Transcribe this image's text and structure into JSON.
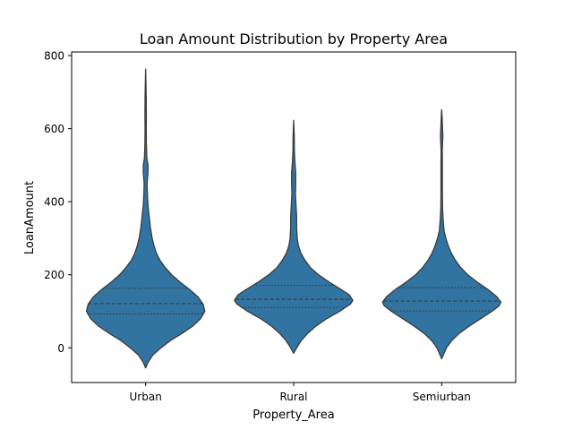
{
  "chart_data": {
    "type": "violin",
    "title": "Loan Amount Distribution by Property Area",
    "xlabel": "Property_Area",
    "ylabel": "LoanAmount",
    "ylim": [
      -95,
      810
    ],
    "yticks": [
      0,
      200,
      400,
      600,
      800
    ],
    "categories": [
      "Urban",
      "Rural",
      "Semiurban"
    ],
    "violin_color": "#3274a1",
    "edge_color": "#3b3b3b",
    "inner": "quartile",
    "series": [
      {
        "category": "Urban",
        "quartiles": [
          93,
          121,
          163
        ],
        "profile": [
          [
            -55,
            0
          ],
          [
            -40,
            0.04
          ],
          [
            -20,
            0.12
          ],
          [
            0,
            0.26
          ],
          [
            20,
            0.42
          ],
          [
            40,
            0.62
          ],
          [
            60,
            0.8
          ],
          [
            80,
            0.93
          ],
          [
            100,
            1.0
          ],
          [
            120,
            0.97
          ],
          [
            140,
            0.88
          ],
          [
            160,
            0.74
          ],
          [
            180,
            0.58
          ],
          [
            200,
            0.44
          ],
          [
            220,
            0.33
          ],
          [
            240,
            0.24
          ],
          [
            260,
            0.18
          ],
          [
            280,
            0.14
          ],
          [
            300,
            0.11
          ],
          [
            330,
            0.08
          ],
          [
            360,
            0.06
          ],
          [
            390,
            0.04
          ],
          [
            420,
            0.03
          ],
          [
            450,
            0.025
          ],
          [
            480,
            0.04
          ],
          [
            500,
            0.04
          ],
          [
            520,
            0.02
          ],
          [
            560,
            0.012
          ],
          [
            600,
            0.01
          ],
          [
            640,
            0.012
          ],
          [
            680,
            0.01
          ],
          [
            720,
            0.006
          ],
          [
            763,
            0
          ]
        ]
      },
      {
        "category": "Rural",
        "quartiles": [
          110,
          133,
          171
        ],
        "profile": [
          [
            -15,
            0
          ],
          [
            0,
            0.05
          ],
          [
            20,
            0.13
          ],
          [
            40,
            0.24
          ],
          [
            60,
            0.38
          ],
          [
            80,
            0.56
          ],
          [
            100,
            0.78
          ],
          [
            120,
            0.96
          ],
          [
            130,
            1.0
          ],
          [
            145,
            0.94
          ],
          [
            160,
            0.8
          ],
          [
            180,
            0.6
          ],
          [
            200,
            0.42
          ],
          [
            220,
            0.28
          ],
          [
            240,
            0.19
          ],
          [
            260,
            0.12
          ],
          [
            280,
            0.08
          ],
          [
            300,
            0.06
          ],
          [
            330,
            0.05
          ],
          [
            360,
            0.05
          ],
          [
            390,
            0.04
          ],
          [
            420,
            0.03
          ],
          [
            450,
            0.035
          ],
          [
            480,
            0.035
          ],
          [
            510,
            0.02
          ],
          [
            540,
            0.012
          ],
          [
            580,
            0.01
          ],
          [
            623,
            0
          ]
        ]
      },
      {
        "category": "Semiurban",
        "quartiles": [
          101,
          128,
          165
        ],
        "profile": [
          [
            -30,
            0
          ],
          [
            -15,
            0.04
          ],
          [
            0,
            0.08
          ],
          [
            20,
            0.17
          ],
          [
            40,
            0.3
          ],
          [
            60,
            0.47
          ],
          [
            80,
            0.66
          ],
          [
            100,
            0.85
          ],
          [
            115,
            0.97
          ],
          [
            125,
            1.0
          ],
          [
            140,
            0.93
          ],
          [
            160,
            0.78
          ],
          [
            180,
            0.6
          ],
          [
            200,
            0.44
          ],
          [
            220,
            0.32
          ],
          [
            240,
            0.23
          ],
          [
            260,
            0.16
          ],
          [
            280,
            0.11
          ],
          [
            300,
            0.07
          ],
          [
            320,
            0.04
          ],
          [
            350,
            0.025
          ],
          [
            380,
            0.015
          ],
          [
            420,
            0.012
          ],
          [
            460,
            0.012
          ],
          [
            500,
            0.012
          ],
          [
            540,
            0.01
          ],
          [
            580,
            0.02
          ],
          [
            600,
            0.015
          ],
          [
            630,
            0.008
          ],
          [
            652,
            0
          ]
        ]
      }
    ]
  }
}
